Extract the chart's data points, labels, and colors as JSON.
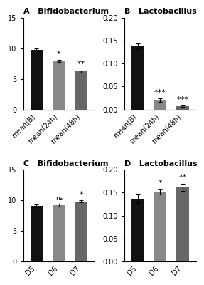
{
  "panel_A": {
    "title": "Bifidobacterium",
    "label": "A",
    "categories": [
      "mean(B)",
      "mean(24h)",
      "mean(48h)"
    ],
    "values": [
      9.7,
      7.9,
      6.2
    ],
    "errors": [
      0.25,
      0.18,
      0.2
    ],
    "colors": [
      "#111111",
      "#888888",
      "#666666"
    ],
    "ylim": [
      0,
      15
    ],
    "yticks": [
      0,
      5,
      10,
      15
    ],
    "significance": [
      "",
      "*",
      "**"
    ]
  },
  "panel_B": {
    "title": "Lactobacillus",
    "label": "B",
    "categories": [
      "mean(B)",
      "mean(24h)",
      "mean(48h)"
    ],
    "values": [
      0.138,
      0.02,
      0.007
    ],
    "errors": [
      0.006,
      0.004,
      0.002
    ],
    "colors": [
      "#111111",
      "#888888",
      "#666666"
    ],
    "ylim": [
      0,
      0.2
    ],
    "yticks": [
      0.0,
      0.05,
      0.1,
      0.15,
      0.2
    ],
    "significance": [
      "",
      "***",
      "***"
    ]
  },
  "panel_C": {
    "title": "Bifidobacterium",
    "label": "C",
    "categories": [
      "D5",
      "D6",
      "D7"
    ],
    "values": [
      9.1,
      9.2,
      9.8
    ],
    "errors": [
      0.25,
      0.2,
      0.18
    ],
    "colors": [
      "#111111",
      "#888888",
      "#666666"
    ],
    "ylim": [
      0,
      15
    ],
    "yticks": [
      0,
      5,
      10,
      15
    ],
    "significance": [
      "",
      "ns",
      "*"
    ]
  },
  "panel_D": {
    "title": "Lactobacillus",
    "label": "D",
    "categories": [
      "D5",
      "D6",
      "D7"
    ],
    "values": [
      0.137,
      0.152,
      0.162
    ],
    "errors": [
      0.01,
      0.006,
      0.008
    ],
    "colors": [
      "#111111",
      "#888888",
      "#666666"
    ],
    "ylim": [
      0,
      0.2
    ],
    "yticks": [
      0.0,
      0.05,
      0.1,
      0.15,
      0.2
    ],
    "significance": [
      "",
      "*",
      "**"
    ]
  },
  "figure_bg": "#ffffff",
  "bar_width": 0.55,
  "title_fontsize": 8,
  "tick_fontsize": 7,
  "sig_fontsize": 8,
  "ns_fontsize": 6.5,
  "xticklabel_rotation": 45
}
